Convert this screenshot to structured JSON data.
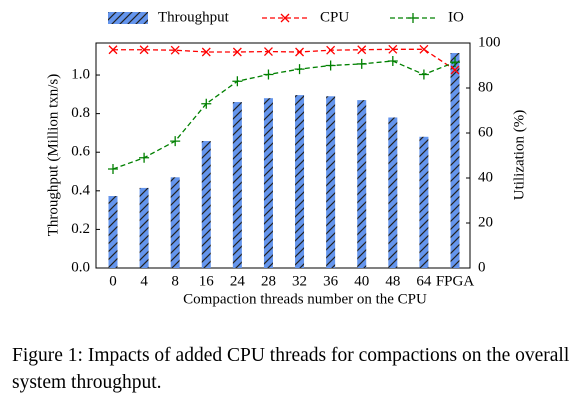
{
  "chart_data": {
    "type": "bar",
    "categories": [
      "0",
      "4",
      "8",
      "16",
      "24",
      "28",
      "32",
      "36",
      "40",
      "48",
      "64",
      "FPGA"
    ],
    "series": [
      {
        "name": "Throughput",
        "type": "bar",
        "axis": "y",
        "color": "#6495ed",
        "values": [
          0.373,
          0.415,
          0.47,
          0.658,
          0.86,
          0.88,
          0.896,
          0.89,
          0.87,
          0.78,
          0.68,
          1.114
        ]
      },
      {
        "name": "CPU",
        "type": "line",
        "axis": "y2",
        "color": "#ff0000",
        "values": [
          97,
          97,
          96.8,
          96,
          96,
          96.2,
          96,
          96.8,
          97,
          97.2,
          97.2,
          88
        ]
      },
      {
        "name": "IO",
        "type": "line",
        "axis": "y2",
        "color": "#008000",
        "values": [
          44,
          49,
          56.4,
          73,
          83,
          86,
          88.4,
          90,
          90.7,
          92,
          86,
          91.5
        ]
      }
    ],
    "xlabel": "Compaction threads number on the CPU",
    "ylabel": "Throughput (Million txn/s)",
    "y2label": "Utilization (%)",
    "ylim": [
      0,
      1.166
    ],
    "yticks": [
      {
        "value": 0,
        "label": "0.0"
      },
      0.2,
      0.4,
      0.6,
      0.8,
      {
        "value": 1,
        "label": "1.0"
      }
    ],
    "y2lim": [
      0,
      100
    ],
    "y2ticks": [
      0,
      20,
      40,
      60,
      80,
      100
    ],
    "legend": "top"
  },
  "caption": "Figure 1: Impacts of added CPU threads for compactions on the overall system throughput."
}
